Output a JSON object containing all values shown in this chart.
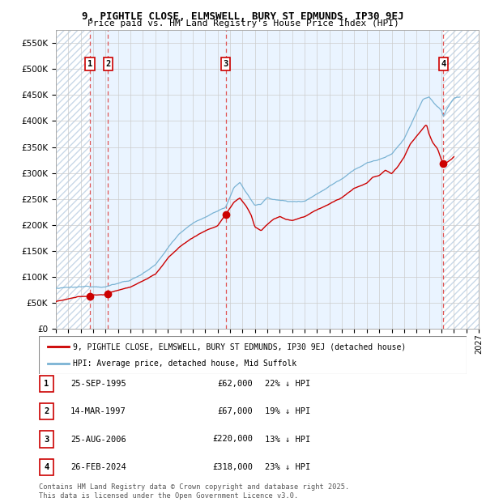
{
  "title": "9, PIGHTLE CLOSE, ELMSWELL, BURY ST EDMUNDS, IP30 9EJ",
  "subtitle": "Price paid vs. HM Land Registry's House Price Index (HPI)",
  "xlim": [
    1993,
    2027
  ],
  "ylim": [
    0,
    575000
  ],
  "yticks": [
    0,
    50000,
    100000,
    150000,
    200000,
    250000,
    300000,
    350000,
    400000,
    450000,
    500000,
    550000
  ],
  "ytick_labels": [
    "£0",
    "£50K",
    "£100K",
    "£150K",
    "£200K",
    "£250K",
    "£300K",
    "£350K",
    "£400K",
    "£450K",
    "£500K",
    "£550K"
  ],
  "sale_dates_num": [
    1995.73,
    1997.2,
    2006.65,
    2024.15
  ],
  "sale_prices": [
    62000,
    67000,
    220000,
    318000
  ],
  "sale_labels": [
    "1",
    "2",
    "3",
    "4"
  ],
  "hpi_color": "#7ab3d4",
  "price_color": "#cc0000",
  "dashed_line_color": "#e05555",
  "plot_bg_color": "#ddeeff",
  "hatch_color": "#c8d8e8",
  "legend_line1": "9, PIGHTLE CLOSE, ELMSWELL, BURY ST EDMUNDS, IP30 9EJ (detached house)",
  "legend_line2": "HPI: Average price, detached house, Mid Suffolk",
  "table_data": [
    [
      "1",
      "25-SEP-1995",
      "£62,000",
      "22% ↓ HPI"
    ],
    [
      "2",
      "14-MAR-1997",
      "£67,000",
      "19% ↓ HPI"
    ],
    [
      "3",
      "25-AUG-2006",
      "£220,000",
      "13% ↓ HPI"
    ],
    [
      "4",
      "26-FEB-2024",
      "£318,000",
      "23% ↓ HPI"
    ]
  ],
  "footer": "Contains HM Land Registry data © Crown copyright and database right 2025.\nThis data is licensed under the Open Government Licence v3.0."
}
